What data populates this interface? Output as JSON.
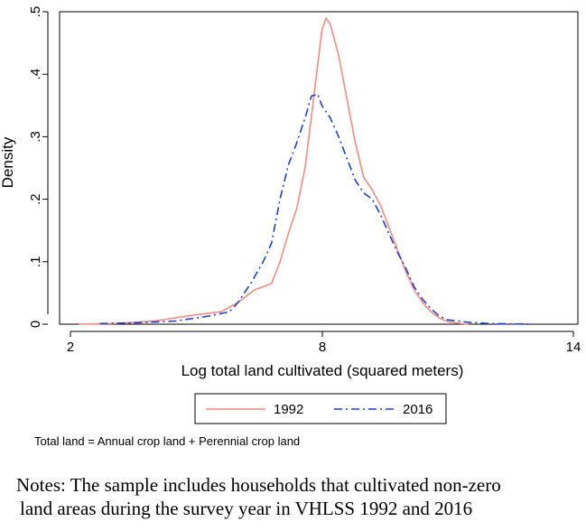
{
  "chart_data": {
    "type": "line",
    "title": "",
    "xlabel": "Log total land cultivated (squared meters)",
    "ylabel": "Density",
    "xlim": [
      2,
      14
    ],
    "ylim": [
      0,
      0.5
    ],
    "xticks": [
      2,
      8,
      14
    ],
    "xtick_labels": [
      "2",
      "8",
      "14"
    ],
    "yticks": [
      0,
      0.1,
      0.2,
      0.3,
      0.4,
      0.5
    ],
    "ytick_labels": [
      "0",
      ".1",
      ".2",
      ".3",
      ".4",
      ".5"
    ],
    "grid": false,
    "legend": "bottom",
    "series": [
      {
        "name": "1992",
        "color": "#f08c80",
        "style": "solid",
        "x": [
          2.2,
          3.0,
          4.0,
          5.0,
          5.6,
          6.0,
          6.4,
          6.8,
          7.0,
          7.2,
          7.4,
          7.6,
          7.8,
          8.0,
          8.1,
          8.2,
          8.4,
          8.6,
          8.8,
          9.0,
          9.2,
          9.4,
          9.6,
          9.8,
          10.0,
          10.2,
          10.4,
          10.6,
          10.8,
          11.0,
          11.2,
          11.5
        ],
        "y": [
          0.0,
          0.001,
          0.005,
          0.015,
          0.02,
          0.035,
          0.055,
          0.065,
          0.1,
          0.145,
          0.185,
          0.25,
          0.36,
          0.47,
          0.49,
          0.48,
          0.43,
          0.36,
          0.29,
          0.235,
          0.215,
          0.19,
          0.155,
          0.12,
          0.085,
          0.055,
          0.035,
          0.02,
          0.01,
          0.004,
          0.002,
          0.0
        ]
      },
      {
        "name": "2016",
        "color": "#1f3fd0",
        "style": "dash-dot",
        "x": [
          2.7,
          3.5,
          4.5,
          5.3,
          5.8,
          6.0,
          6.3,
          6.6,
          6.8,
          7.0,
          7.2,
          7.4,
          7.6,
          7.75,
          7.9,
          8.0,
          8.2,
          8.4,
          8.6,
          8.8,
          9.0,
          9.2,
          9.4,
          9.6,
          9.8,
          10.0,
          10.2,
          10.4,
          10.6,
          10.8,
          11.0,
          11.5,
          12.0,
          13.0
        ],
        "y": [
          0.001,
          0.002,
          0.005,
          0.013,
          0.02,
          0.035,
          0.065,
          0.1,
          0.13,
          0.2,
          0.255,
          0.29,
          0.33,
          0.365,
          0.368,
          0.35,
          0.33,
          0.3,
          0.265,
          0.23,
          0.21,
          0.2,
          0.175,
          0.145,
          0.115,
          0.09,
          0.06,
          0.04,
          0.025,
          0.013,
          0.007,
          0.003,
          0.001,
          0.0
        ]
      }
    ]
  },
  "caption": "Total land = Annual crop land + Perennial crop land",
  "notes": {
    "line1": "Notes: The sample includes households that cultivated non-zero",
    "line2": "land areas during the survey year in VHLSS 1992 and 2016"
  }
}
